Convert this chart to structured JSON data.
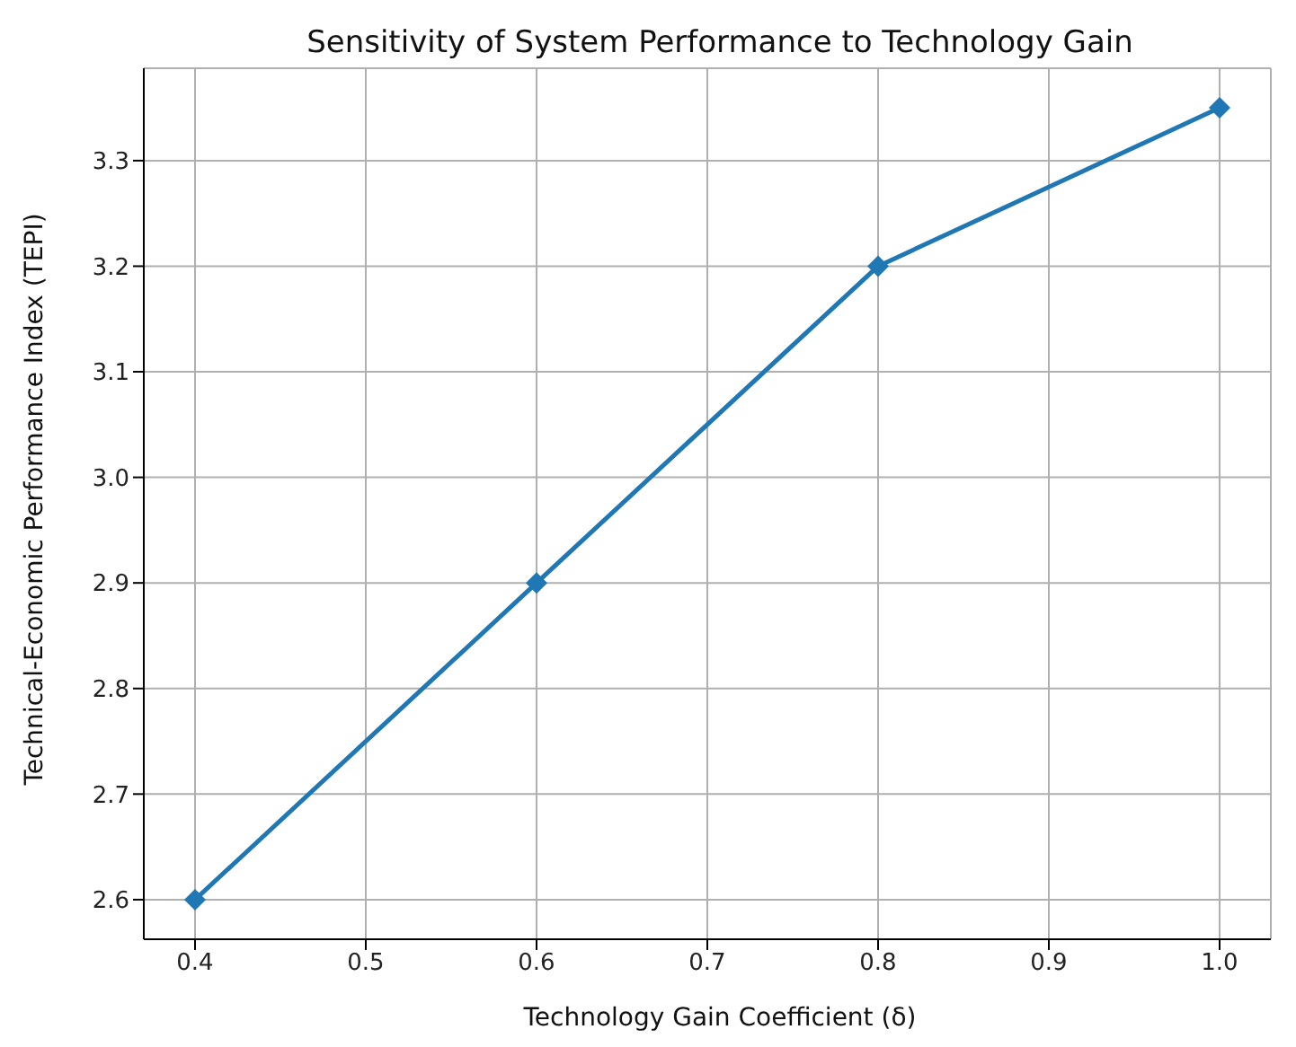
{
  "chart_data": {
    "type": "line",
    "title": "Sensitivity of System Performance to Technology Gain",
    "xlabel": "Technology Gain Coefficient (δ)",
    "ylabel": "Technical-Economic Performance Index (TEPI)",
    "x": [
      0.4,
      0.6,
      0.8,
      1.0
    ],
    "series": [
      {
        "color": "#1f77b4",
        "values": [
          2.6,
          2.9,
          3.2,
          3.35
        ]
      }
    ],
    "xlim": [
      0.37,
      1.03
    ],
    "xticks": [
      0.4,
      0.5,
      0.6,
      0.7,
      0.8,
      0.9,
      {
        "value": 1,
        "label": "1.0"
      }
    ],
    "ylim": [
      2.5625,
      3.3875
    ],
    "yticks": [
      2.6,
      2.7,
      2.8,
      2.9,
      {
        "value": 3,
        "label": "3.0"
      },
      3.1,
      3.2,
      3.3
    ],
    "grid": true,
    "marker": "diamond",
    "line_style": "solid"
  }
}
